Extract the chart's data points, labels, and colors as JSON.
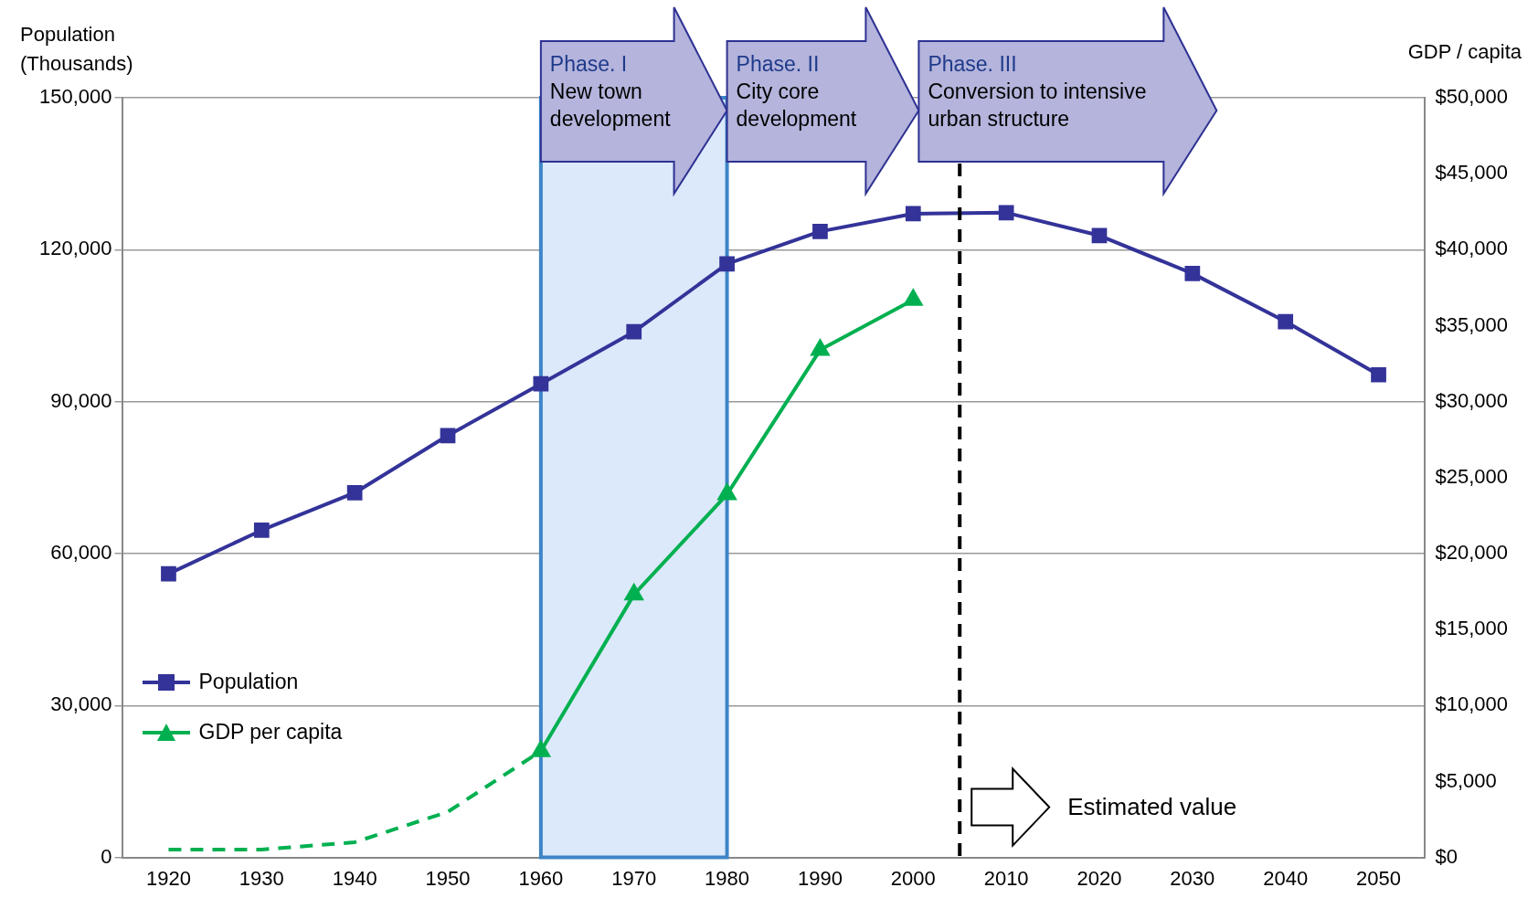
{
  "chart_data": {
    "type": "line",
    "ylabel": "Population\n(Thousands)",
    "y2label": "GDP / capita",
    "x": [
      1920,
      1930,
      1940,
      1950,
      1960,
      1970,
      1980,
      1990,
      2000,
      2010,
      2020,
      2030,
      2040,
      2050
    ],
    "series": [
      {
        "name": "Population",
        "color": "#333399",
        "marker": "square",
        "values": [
          56000,
          64600,
          72000,
          83300,
          93500,
          103800,
          117200,
          123600,
          127100,
          127300,
          122800,
          115300,
          105800,
          95300
        ]
      },
      {
        "color": "#00b050",
        "axis": "y2",
        "marker": "none",
        "line_style": "dashed",
        "x": [
          1920,
          1930,
          1940,
          1950,
          1960
        ],
        "values": [
          520,
          520,
          1000,
          3000,
          7000
        ]
      },
      {
        "name": "GDP per capita",
        "color": "#00b050",
        "axis": "y2",
        "marker": "triangle",
        "x": [
          1960,
          1970,
          1980,
          1990,
          2000
        ],
        "values": [
          7000,
          17300,
          23900,
          33400,
          36700
        ]
      }
    ],
    "xlim": [
      1915,
      2055
    ],
    "xticks": [
      1920,
      1930,
      1940,
      1950,
      1960,
      1970,
      1980,
      1990,
      2000,
      2010,
      2020,
      2030,
      2040,
      2050
    ],
    "ylim": [
      0,
      150000
    ],
    "yticks": [
      {
        "value": 0,
        "label": "0"
      },
      {
        "value": 30000,
        "label": "30,000"
      },
      {
        "value": 60000,
        "label": "60,000"
      },
      {
        "value": 90000,
        "label": "90,000"
      },
      {
        "value": 120000,
        "label": "120,000"
      },
      {
        "value": 150000,
        "label": "150,000"
      }
    ],
    "y2lim": [
      0,
      50000
    ],
    "y2ticks": [
      {
        "value": 0,
        "label": "$0"
      },
      {
        "value": 5000,
        "label": "$5,000"
      },
      {
        "value": 10000,
        "label": "$10,000"
      },
      {
        "value": 15000,
        "label": "$15,000"
      },
      {
        "value": 20000,
        "label": "$20,000"
      },
      {
        "value": 25000,
        "label": "$25,000"
      },
      {
        "value": 30000,
        "label": "$30,000"
      },
      {
        "value": 35000,
        "label": "$35,000"
      },
      {
        "value": 40000,
        "label": "$40,000"
      },
      {
        "value": 45000,
        "label": "$45,000"
      },
      {
        "value": 50000,
        "label": "$50,000"
      }
    ],
    "bands": [
      {
        "axis": "x",
        "from": 1960,
        "to": 1980,
        "color": "#dbe9fb"
      }
    ],
    "ref_lines": [
      {
        "axis": "x",
        "value": 2005,
        "color": "#000000",
        "line_style": "dashed"
      }
    ],
    "annotations": [
      "Phase. I\nNew town development",
      "Phase. II\nCity core development",
      "Phase. III\nConversion  to intensive urban structure",
      "Estimated value"
    ],
    "grid": "y",
    "legend": "bottom left"
  }
}
